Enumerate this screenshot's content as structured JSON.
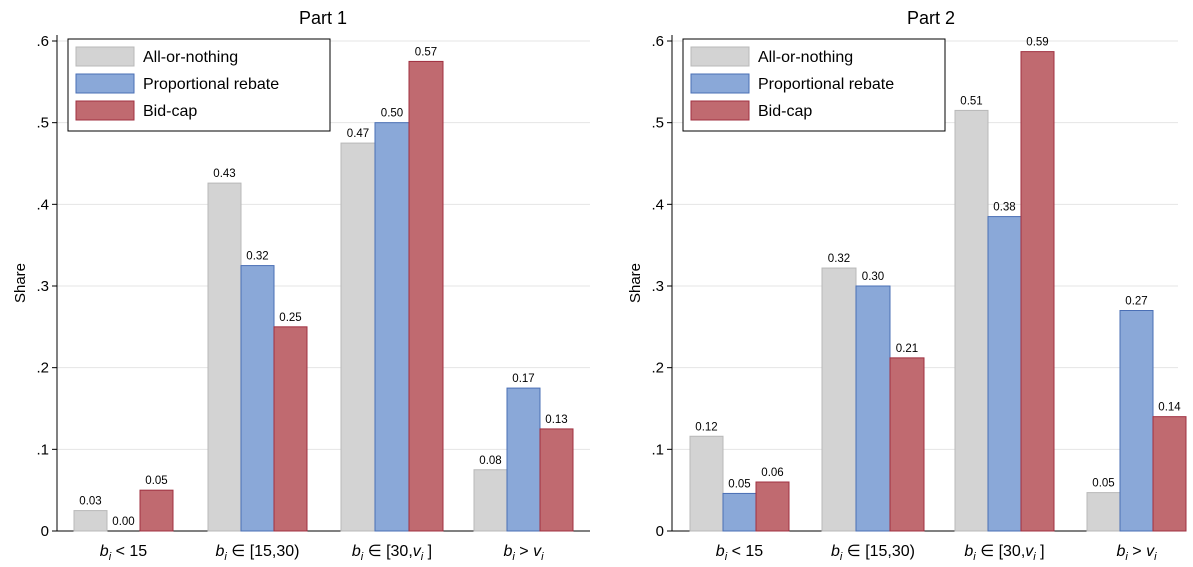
{
  "colors": {
    "series": [
      "#d3d3d3",
      "#8aa8d8",
      "#c06a70"
    ],
    "stroke": [
      "#b8b8b8",
      "#4a6fb5",
      "#a03040"
    ],
    "grid": "#e4e4e4"
  },
  "chart_data": [
    {
      "type": "bar",
      "title": "Part 1",
      "ylabel": "Share",
      "ylim": [
        0,
        0.6
      ],
      "yticks": [
        0,
        0.1,
        0.2,
        0.3,
        0.4,
        0.5,
        0.6
      ],
      "ytick_labels": [
        "0",
        ".1",
        ".2",
        ".3",
        ".4",
        ".5",
        ".6"
      ],
      "grid": true,
      "legend_position": "top-left",
      "categories": [
        {
          "sym": "b",
          "sub": "i",
          "rest": " < 15"
        },
        {
          "sym": "b",
          "sub": "i",
          "rest": " ∈ [15,30)"
        },
        {
          "sym": "b",
          "sub": "i",
          "rest": " ∈ [30,",
          "sym2": "v",
          "sub2": "i",
          "end": " ]"
        },
        {
          "sym": "b",
          "sub": "i",
          "rest": " > ",
          "sym2": "v",
          "sub2": "i",
          "end": ""
        }
      ],
      "series": [
        {
          "name": "All-or-nothing",
          "values": [
            0.025,
            0.426,
            0.475,
            0.075
          ],
          "labels": [
            "0.03",
            "0.43",
            "0.47",
            "0.08"
          ]
        },
        {
          "name": "Proportional rebate",
          "values": [
            0.0,
            0.325,
            0.5,
            0.175
          ],
          "labels": [
            "0.00",
            "0.32",
            "0.50",
            "0.17"
          ]
        },
        {
          "name": "Bid-cap",
          "values": [
            0.05,
            0.25,
            0.575,
            0.125
          ],
          "labels": [
            "0.05",
            "0.25",
            "0.57",
            "0.13"
          ]
        }
      ]
    },
    {
      "type": "bar",
      "title": "Part 2",
      "ylabel": "Share",
      "ylim": [
        0,
        0.6
      ],
      "yticks": [
        0,
        0.1,
        0.2,
        0.3,
        0.4,
        0.5,
        0.6
      ],
      "ytick_labels": [
        "0",
        ".1",
        ".2",
        ".3",
        ".4",
        ".5",
        ".6"
      ],
      "grid": true,
      "legend_position": "top-left",
      "categories": [
        {
          "sym": "b",
          "sub": "i",
          "rest": " < 15"
        },
        {
          "sym": "b",
          "sub": "i",
          "rest": " ∈ [15,30)"
        },
        {
          "sym": "b",
          "sub": "i",
          "rest": " ∈ [30,",
          "sym2": "v",
          "sub2": "i",
          "end": " ]"
        },
        {
          "sym": "b",
          "sub": "i",
          "rest": " > ",
          "sym2": "v",
          "sub2": "i",
          "end": ""
        }
      ],
      "series": [
        {
          "name": "All-or-nothing",
          "values": [
            0.116,
            0.322,
            0.515,
            0.047
          ],
          "labels": [
            "0.12",
            "0.32",
            "0.51",
            "0.05"
          ]
        },
        {
          "name": "Proportional rebate",
          "values": [
            0.046,
            0.3,
            0.385,
            0.27
          ],
          "labels": [
            "0.05",
            "0.30",
            "0.38",
            "0.27"
          ]
        },
        {
          "name": "Bid-cap",
          "values": [
            0.06,
            0.212,
            0.587,
            0.14
          ],
          "labels": [
            "0.06",
            "0.21",
            "0.59",
            "0.14"
          ]
        }
      ]
    }
  ]
}
